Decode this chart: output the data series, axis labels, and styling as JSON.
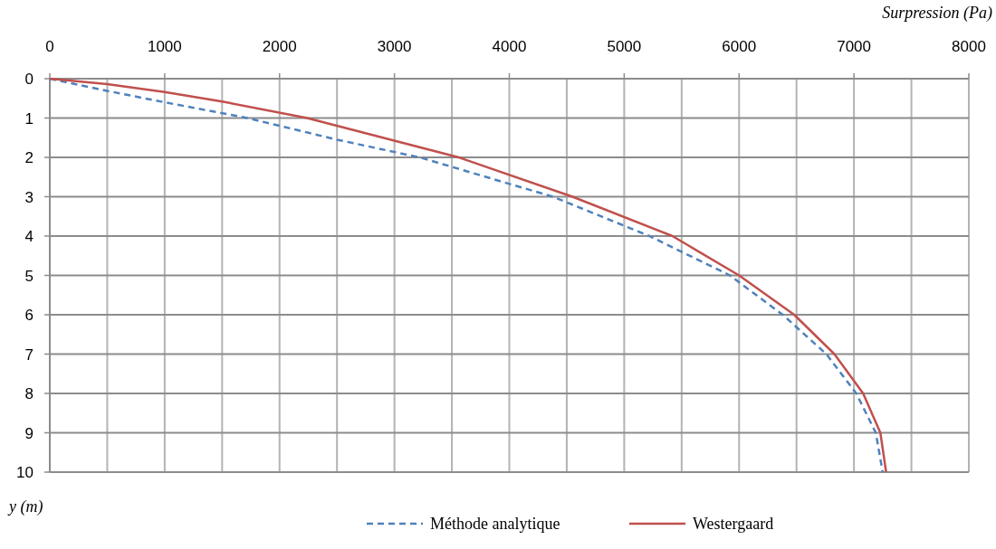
{
  "chart_data": {
    "type": "line",
    "xlabel": "Surpression (Pa)",
    "ylabel": "y (m)",
    "xlim": [
      0,
      8000
    ],
    "ylim": [
      10,
      0
    ],
    "xticks": [
      0,
      {
        "value": 500,
        "label": null
      },
      1000,
      {
        "value": 1500,
        "label": null
      },
      2000,
      {
        "value": 2500,
        "label": null
      },
      3000,
      {
        "value": 3500,
        "label": null
      },
      4000,
      {
        "value": 4500,
        "label": null
      },
      5000,
      {
        "value": 5500,
        "label": null
      },
      6000,
      {
        "value": 6500,
        "label": null
      },
      7000,
      {
        "value": 7500,
        "label": null
      },
      8000
    ],
    "yticks": [
      0,
      1,
      2,
      3,
      4,
      5,
      6,
      7,
      8,
      9,
      10
    ],
    "grid": true,
    "legend": "bottom",
    "marker": "none",
    "series": [
      {
        "name": "Méthode analytique",
        "color": "#4f81bd",
        "line_style": "dashed",
        "x": [
          0,
          500,
          1000,
          1720,
          2500,
          3220,
          4380,
          5220,
          5920,
          6380,
          6760,
          7020,
          7190,
          7250
        ],
        "values": [
          0,
          0.31,
          0.6,
          1,
          1.55,
          2,
          3,
          4,
          5,
          6,
          7,
          8,
          9,
          10
        ]
      },
      {
        "name": "Westergaard",
        "color": "#c0504d",
        "line_style": "solid",
        "x": [
          0,
          500,
          1000,
          1500,
          2240,
          2900,
          3560,
          4550,
          5420,
          6000,
          6480,
          6830,
          7080,
          7230,
          7280
        ],
        "values": [
          0,
          0.14,
          0.34,
          0.58,
          1,
          1.5,
          2,
          3,
          4,
          5,
          6,
          7,
          8,
          9,
          10
        ]
      }
    ]
  }
}
